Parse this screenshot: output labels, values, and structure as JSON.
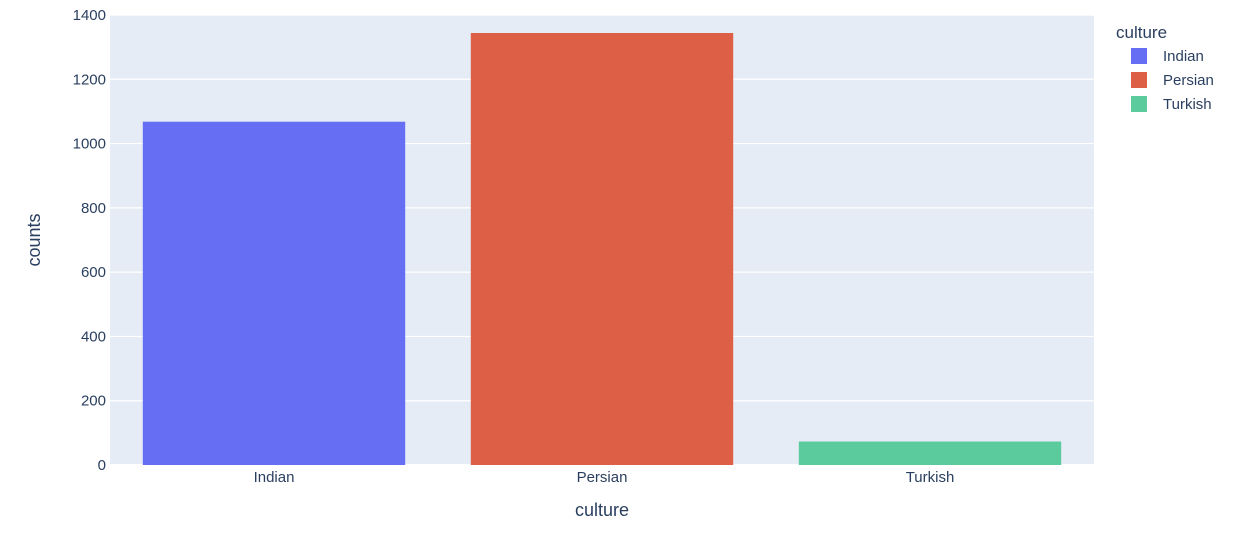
{
  "chart_data": {
    "type": "bar",
    "title": "",
    "xlabel": "culture",
    "ylabel": "counts",
    "categories": [
      "Indian",
      "Persian",
      "Turkish"
    ],
    "values": [
      1068,
      1344,
      73
    ],
    "colors": [
      "#636efa",
      "#ef553b",
      "#00cc96"
    ],
    "bar_fill_colors": [
      "#666ff3",
      "#dd5f45",
      "#5bca9c"
    ],
    "ylim": [
      0,
      1400
    ],
    "yticks": [
      0,
      200,
      400,
      600,
      800,
      1000,
      1200,
      1400
    ],
    "ytick_labels": [
      "0",
      "200",
      "400",
      "600",
      "800",
      "1000",
      "1200",
      "1400"
    ],
    "grid": true,
    "plot_background": "#e5ecf6",
    "legend": {
      "title": "culture",
      "placement": "top-right",
      "items": [
        {
          "label": "Indian",
          "color": "#666ff3"
        },
        {
          "label": "Persian",
          "color": "#dd5f45"
        },
        {
          "label": "Turkish",
          "color": "#5bca9c"
        }
      ]
    }
  }
}
